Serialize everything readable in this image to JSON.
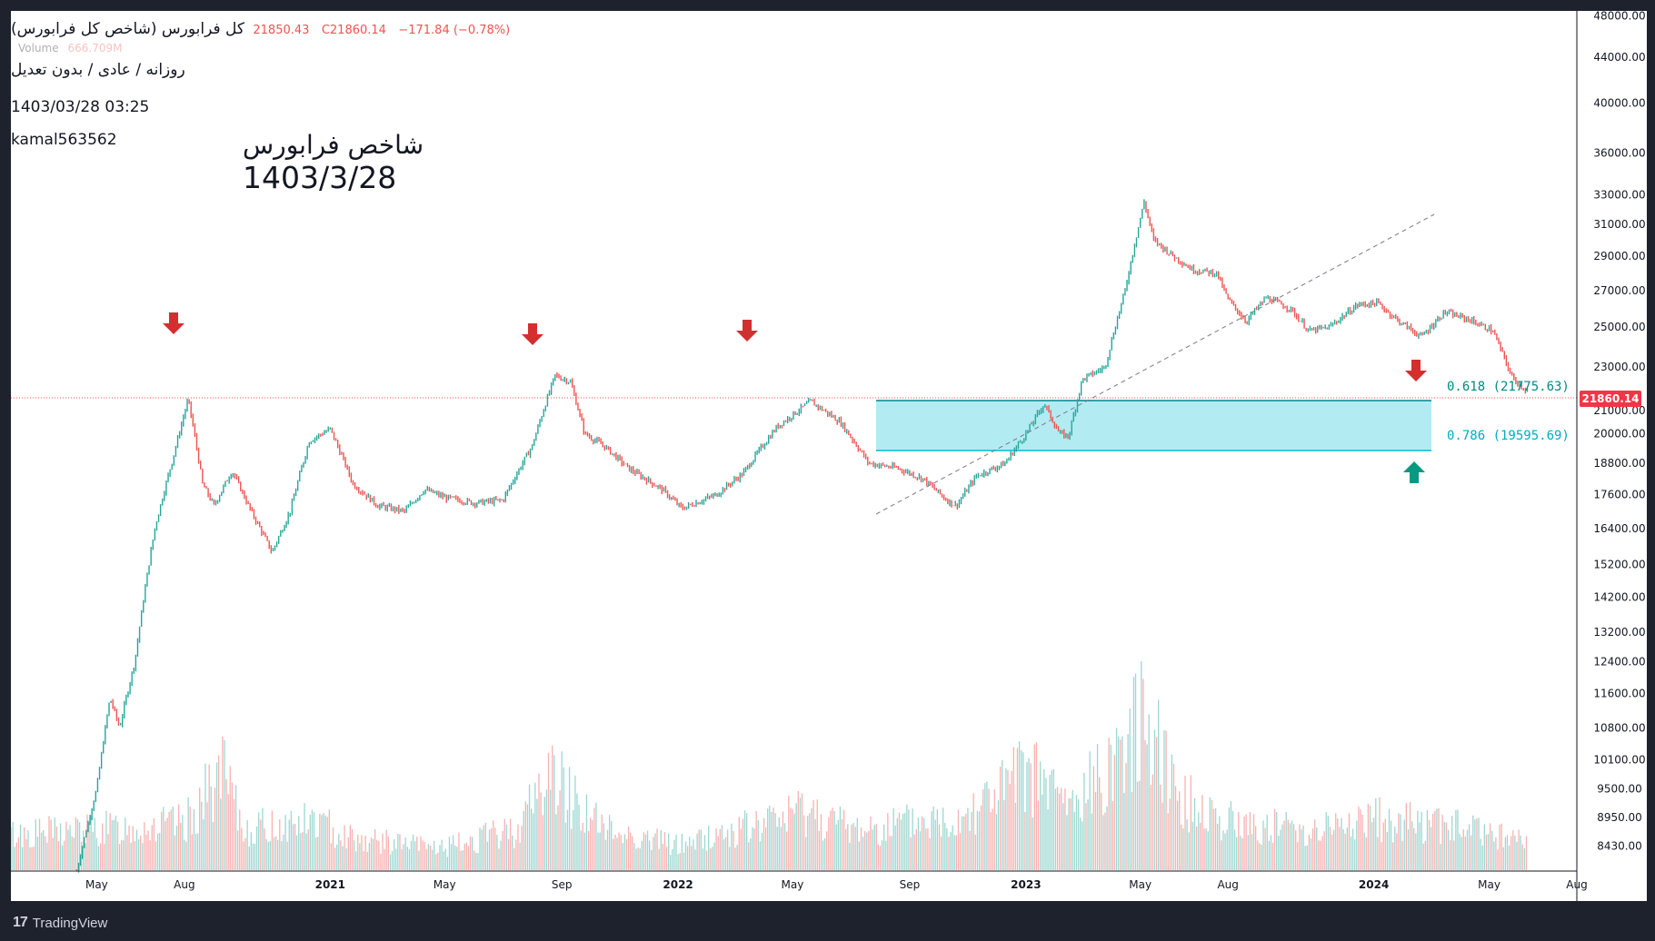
{
  "legend": {
    "symbol_title": "کل فرابورس (شاخص کل فرابورس)",
    "ohlc_text": "21850.43",
    "close_text": "C21860.14",
    "change_text": "−171.84 (−0.78%)",
    "volume_label": "Volume",
    "volume_value": "666.709M",
    "timeframe": "روزانه / عادی / بدون تعدیل",
    "datetime": "1403/03/28 03:25",
    "author": "kamal563562"
  },
  "annotation": {
    "line1": "شاخص فرابورس",
    "line2": "1403/3/28"
  },
  "fib_levels": [
    {
      "label": "0.618 (21775.63)",
      "value": 21775.63
    },
    {
      "label": "0.786 (19595.69)",
      "value": 19595.69
    }
  ],
  "last_price_label": "21860.14",
  "footer": {
    "brand": "TradingView"
  },
  "colors": {
    "up": "#26a69a",
    "down": "#ef5350",
    "fib": "#00bcd4",
    "zone": "#b2ebf2",
    "arrow_red": "#d32f2f",
    "arrow_green": "#089981"
  },
  "chart_data": {
    "type": "line",
    "title": "کل فرابورس (شاخص کل فرابورس)",
    "y_scale": "log",
    "ylim": [
      8000,
      48500
    ],
    "y_ticks": [
      48000,
      44000,
      40000,
      36000,
      33000,
      31000,
      29000,
      27000,
      25000,
      23000,
      21000,
      20000,
      18800,
      17600,
      16400,
      15200,
      14200,
      13200,
      12400,
      11600,
      10800,
      10100,
      9500,
      8950,
      8430
    ],
    "x_ticks": [
      "May",
      "Aug",
      "2021",
      "May",
      "Sep",
      "2022",
      "May",
      "Sep",
      "2023",
      "May",
      "Aug",
      "2024",
      "May",
      "Aug"
    ],
    "x_tick_dates": [
      "2020-05",
      "2020-08",
      "2021-01",
      "2021-05",
      "2021-09",
      "2022-01",
      "2022-05",
      "2022-09",
      "2023-01",
      "2023-05",
      "2023-08",
      "2024-01",
      "2024-05",
      "2024-08"
    ],
    "x_range": [
      "2020-02",
      "2024-08"
    ],
    "series": [
      {
        "values": [
          {
            "x": "2020-04-10",
            "y": 8000
          },
          {
            "x": "2020-05-01",
            "y": 9500
          },
          {
            "x": "2020-05-15",
            "y": 11500
          },
          {
            "x": "2020-05-25",
            "y": 10800
          },
          {
            "x": "2020-06-10",
            "y": 12400
          },
          {
            "x": "2020-07-01",
            "y": 16400
          },
          {
            "x": "2020-07-20",
            "y": 19000
          },
          {
            "x": "2020-08-05",
            "y": 21500
          },
          {
            "x": "2020-08-20",
            "y": 18000
          },
          {
            "x": "2020-09-01",
            "y": 17200
          },
          {
            "x": "2020-09-20",
            "y": 18500
          },
          {
            "x": "2020-10-10",
            "y": 17000
          },
          {
            "x": "2020-11-01",
            "y": 15600
          },
          {
            "x": "2020-11-20",
            "y": 17000
          },
          {
            "x": "2020-12-10",
            "y": 19700
          },
          {
            "x": "2021-01-01",
            "y": 20200
          },
          {
            "x": "2021-01-25",
            "y": 18000
          },
          {
            "x": "2021-02-20",
            "y": 17200
          },
          {
            "x": "2021-03-20",
            "y": 17000
          },
          {
            "x": "2021-04-10",
            "y": 17800
          },
          {
            "x": "2021-05-01",
            "y": 17500
          },
          {
            "x": "2021-06-01",
            "y": 17300
          },
          {
            "x": "2021-07-01",
            "y": 17400
          },
          {
            "x": "2021-08-01",
            "y": 19500
          },
          {
            "x": "2021-08-25",
            "y": 22600
          },
          {
            "x": "2021-09-10",
            "y": 22300
          },
          {
            "x": "2021-09-25",
            "y": 20000
          },
          {
            "x": "2021-10-15",
            "y": 19500
          },
          {
            "x": "2021-11-10",
            "y": 18600
          },
          {
            "x": "2021-12-15",
            "y": 17800
          },
          {
            "x": "2022-01-05",
            "y": 17100
          },
          {
            "x": "2022-02-10",
            "y": 17600
          },
          {
            "x": "2022-03-10",
            "y": 18400
          },
          {
            "x": "2022-04-15",
            "y": 20300
          },
          {
            "x": "2022-05-20",
            "y": 21400
          },
          {
            "x": "2022-06-20",
            "y": 20500
          },
          {
            "x": "2022-07-20",
            "y": 18800
          },
          {
            "x": "2022-08-20",
            "y": 18600
          },
          {
            "x": "2022-09-15",
            "y": 18200
          },
          {
            "x": "2022-10-10",
            "y": 17400
          },
          {
            "x": "2022-10-20",
            "y": 17200
          },
          {
            "x": "2022-11-10",
            "y": 18300
          },
          {
            "x": "2022-12-10",
            "y": 18800
          },
          {
            "x": "2023-01-01",
            "y": 20000
          },
          {
            "x": "2023-01-20",
            "y": 21300
          },
          {
            "x": "2023-02-05",
            "y": 20000
          },
          {
            "x": "2023-02-15",
            "y": 19900
          },
          {
            "x": "2023-03-01",
            "y": 22400
          },
          {
            "x": "2023-03-25",
            "y": 23000
          },
          {
            "x": "2023-04-15",
            "y": 27000
          },
          {
            "x": "2023-05-05",
            "y": 32500
          },
          {
            "x": "2023-05-15",
            "y": 30000
          },
          {
            "x": "2023-06-05",
            "y": 29000
          },
          {
            "x": "2023-06-25",
            "y": 28200
          },
          {
            "x": "2023-07-20",
            "y": 28000
          },
          {
            "x": "2023-08-01",
            "y": 26500
          },
          {
            "x": "2023-08-20",
            "y": 25300
          },
          {
            "x": "2023-09-10",
            "y": 26600
          },
          {
            "x": "2023-10-05",
            "y": 26000
          },
          {
            "x": "2023-10-25",
            "y": 24800
          },
          {
            "x": "2023-11-15",
            "y": 25000
          },
          {
            "x": "2023-12-15",
            "y": 26200
          },
          {
            "x": "2024-01-05",
            "y": 26300
          },
          {
            "x": "2024-01-25",
            "y": 25400
          },
          {
            "x": "2024-02-20",
            "y": 24500
          },
          {
            "x": "2024-03-15",
            "y": 25800
          },
          {
            "x": "2024-04-10",
            "y": 25400
          },
          {
            "x": "2024-05-05",
            "y": 24800
          },
          {
            "x": "2024-05-25",
            "y": 22500
          },
          {
            "x": "2024-06-10",
            "y": 21860
          }
        ]
      },
      {
        "type": "volume",
        "values": [
          {
            "x": "2020-02-01",
            "y": 0.35
          },
          {
            "x": "2020-05-01",
            "y": 0.4
          },
          {
            "x": "2020-08-01",
            "y": 0.45
          },
          {
            "x": "2020-09-10",
            "y": 0.95
          },
          {
            "x": "2020-10-01",
            "y": 0.4
          },
          {
            "x": "2020-12-15",
            "y": 0.48
          },
          {
            "x": "2021-02-01",
            "y": 0.3
          },
          {
            "x": "2021-05-01",
            "y": 0.22
          },
          {
            "x": "2021-07-15",
            "y": 0.4
          },
          {
            "x": "2021-08-20",
            "y": 0.95
          },
          {
            "x": "2021-09-15",
            "y": 0.7
          },
          {
            "x": "2021-10-15",
            "y": 0.4
          },
          {
            "x": "2022-01-01",
            "y": 0.25
          },
          {
            "x": "2022-04-01",
            "y": 0.45
          },
          {
            "x": "2022-05-15",
            "y": 0.6
          },
          {
            "x": "2022-07-01",
            "y": 0.4
          },
          {
            "x": "2022-10-15",
            "y": 0.5
          },
          {
            "x": "2023-01-05",
            "y": 0.95
          },
          {
            "x": "2023-02-20",
            "y": 0.6
          },
          {
            "x": "2023-04-10",
            "y": 1.2
          },
          {
            "x": "2023-05-10",
            "y": 1.6
          },
          {
            "x": "2023-06-10",
            "y": 0.7
          },
          {
            "x": "2023-08-10",
            "y": 0.45
          },
          {
            "x": "2023-11-01",
            "y": 0.4
          },
          {
            "x": "2024-01-10",
            "y": 0.5
          },
          {
            "x": "2024-03-10",
            "y": 0.45
          },
          {
            "x": "2024-05-10",
            "y": 0.35
          },
          {
            "x": "2024-06-10",
            "y": 0.25
          }
        ]
      }
    ]
  }
}
